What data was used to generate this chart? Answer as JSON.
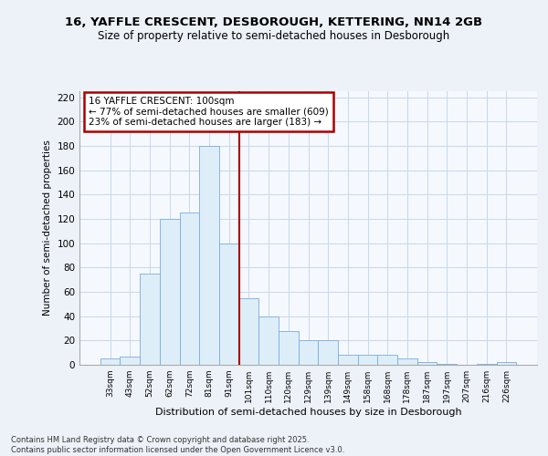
{
  "title_line1": "16, YAFFLE CRESCENT, DESBOROUGH, KETTERING, NN14 2GB",
  "title_line2": "Size of property relative to semi-detached houses in Desborough",
  "xlabel": "Distribution of semi-detached houses by size in Desborough",
  "ylabel": "Number of semi-detached properties",
  "categories": [
    "33sqm",
    "43sqm",
    "52sqm",
    "62sqm",
    "72sqm",
    "81sqm",
    "91sqm",
    "101sqm",
    "110sqm",
    "120sqm",
    "129sqm",
    "139sqm",
    "149sqm",
    "158sqm",
    "168sqm",
    "178sqm",
    "187sqm",
    "197sqm",
    "207sqm",
    "216sqm",
    "226sqm"
  ],
  "values": [
    5,
    7,
    75,
    120,
    125,
    180,
    100,
    55,
    40,
    28,
    20,
    20,
    8,
    8,
    8,
    5,
    2,
    1,
    0,
    1,
    2
  ],
  "bar_color": "#ddeef8",
  "bar_edge_color": "#7aabe0",
  "vline_x_index": 7,
  "vline_color": "#aa0000",
  "annotation_text": "16 YAFFLE CRESCENT: 100sqm\n← 77% of semi-detached houses are smaller (609)\n23% of semi-detached houses are larger (183) →",
  "annotation_box_color": "#ffffff",
  "annotation_box_edge_color": "#aa0000",
  "ylim": [
    0,
    225
  ],
  "yticks": [
    0,
    20,
    40,
    60,
    80,
    100,
    120,
    140,
    160,
    180,
    200,
    220
  ],
  "footer_text": "Contains HM Land Registry data © Crown copyright and database right 2025.\nContains public sector information licensed under the Open Government Licence v3.0.",
  "bg_color": "#edf2f8",
  "plot_bg_color": "#f5f8fd",
  "grid_color": "#c8d8ec"
}
